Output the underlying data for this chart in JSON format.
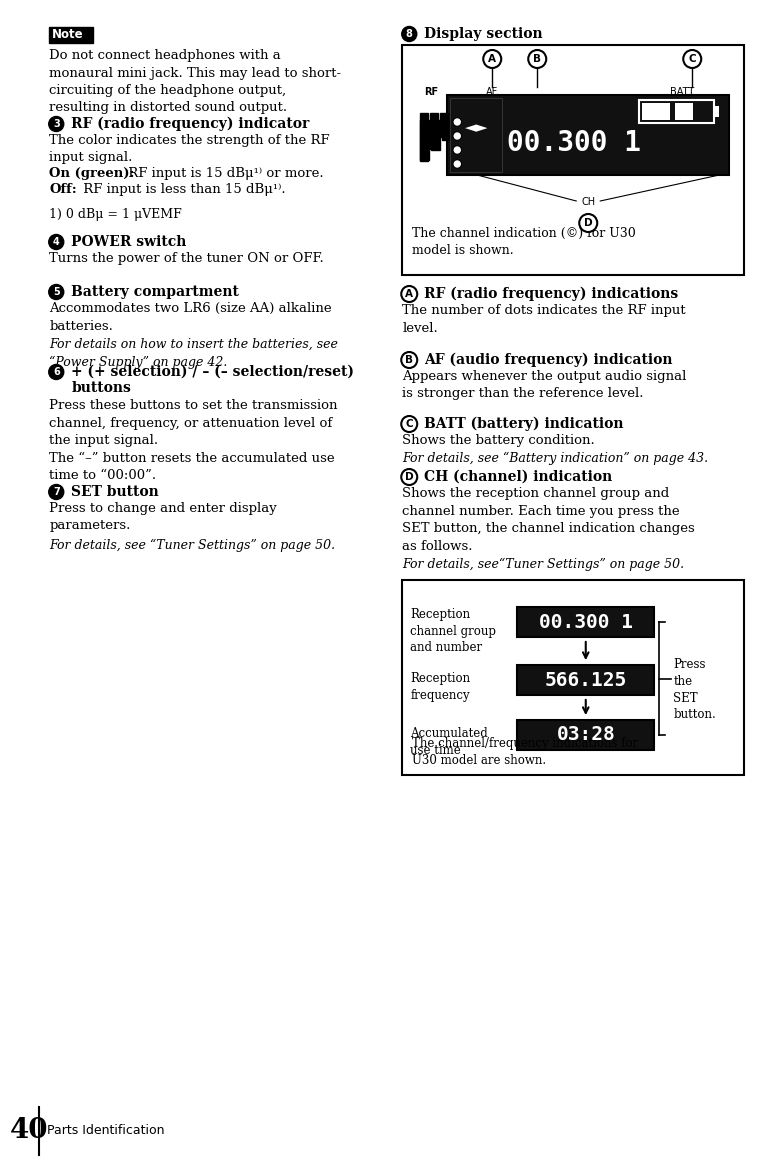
{
  "bg_color": "#ffffff",
  "page_number": "40",
  "page_label": "Parts Identification",
  "note_label": "Note",
  "note_body": "Do not connect headphones with a\nmonaural mini jack. This may lead to short-\ncircuiting of the headphone output,\nresulting in distorted sound output.",
  "s3_title": "RF (radio frequency) indicator",
  "s3_body1": "The color indicates the strength of the RF\ninput signal.",
  "s3_on": "On (green):",
  "s3_on_rest": " RF input is 15 dBμ¹⁾ or more.",
  "s3_off": "Off:",
  "s3_off_rest": " RF input is less than 15 dBμ¹⁾.",
  "s3_footnote": "1) 0 dBμ = 1 μVEMF",
  "s4_title": "POWER switch",
  "s4_body": "Turns the power of the tuner ON or OFF.",
  "s5_title": "Battery compartment",
  "s5_body": "Accommodates two LR6 (size AA) alkaline\nbatteries.",
  "s5_italic": "For details on how to insert the batteries, see\n“Power Supply” on page 42.",
  "s6_title1": "+ (+ selection) / – (– selection/reset)",
  "s6_title2": "buttons",
  "s6_body": "Press these buttons to set the transmission\nchannel, frequency, or attenuation level of\nthe input signal.\nThe “–” button resets the accumulated use\ntime to “00:00”.",
  "s7_title": "SET button",
  "s7_body": "Press to change and enter display\nparameters.",
  "s7_italic": "For details, see “Tuner Settings” on page 50.",
  "s8_title": "Display section",
  "sA_title": "RF (radio frequency) indications",
  "sA_body": "The number of dots indicates the RF input\nlevel.",
  "sB_title": "AF (audio frequency) indication",
  "sB_body": "Appears whenever the output audio signal\nis stronger than the reference level.",
  "sC_title": "BATT (battery) indication",
  "sC_body": "Shows the battery condition.",
  "sC_italic": "For details, see “Battery indication” on page 43.",
  "sD_title": "CH (channel) indication",
  "sD_body": "Shows the reception channel group and\nchannel number. Each time you press the\nSET button, the channel indication changes\nas follows.",
  "sD_italic": "For details, see“Tuner Settings” on page 50.",
  "diag_caption": "The channel indication (©) for U30\nmodel is shown.",
  "tbl_row1_lbl": "Reception\nchannel group\nand number",
  "tbl_row1_val": "00.300 1",
  "tbl_row2_lbl": "Reception\nfrequency",
  "tbl_row2_val": "566.125",
  "tbl_row3_lbl": "Accumulated\nuse time",
  "tbl_row3_val": "03:28",
  "tbl_press": "Press\nthe\nSET\nbutton.",
  "tbl_caption": "The channel/frequency indications for\nU30 model are shown."
}
